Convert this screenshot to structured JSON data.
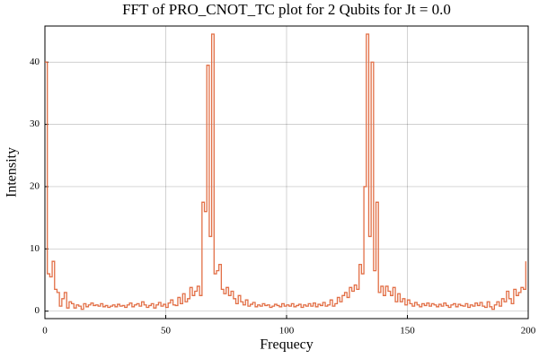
{
  "chart_data": {
    "type": "step",
    "title": "FFT of PRO_CNOT_TC plot for 2 Qubits for Jt = 0.0",
    "x_label": "Frequecy",
    "y_label": "Intensity",
    "x": [
      0,
      1,
      2,
      3,
      4,
      5,
      6,
      7,
      8,
      9,
      10,
      11,
      12,
      13,
      14,
      15,
      16,
      17,
      18,
      19,
      20,
      21,
      22,
      23,
      24,
      25,
      26,
      27,
      28,
      29,
      30,
      31,
      32,
      33,
      34,
      35,
      36,
      37,
      38,
      39,
      40,
      41,
      42,
      43,
      44,
      45,
      46,
      47,
      48,
      49,
      50,
      51,
      52,
      53,
      54,
      55,
      56,
      57,
      58,
      59,
      60,
      61,
      62,
      63,
      64,
      65,
      66,
      67,
      68,
      69,
      70,
      71,
      72,
      73,
      74,
      75,
      76,
      77,
      78,
      79,
      80,
      81,
      82,
      83,
      84,
      85,
      86,
      87,
      88,
      89,
      90,
      91,
      92,
      93,
      94,
      95,
      96,
      97,
      98,
      99,
      100,
      101,
      102,
      103,
      104,
      105,
      106,
      107,
      108,
      109,
      110,
      111,
      112,
      113,
      114,
      115,
      116,
      117,
      118,
      119,
      120,
      121,
      122,
      123,
      124,
      125,
      126,
      127,
      128,
      129,
      130,
      131,
      132,
      133,
      134,
      135,
      136,
      137,
      138,
      139,
      140,
      141,
      142,
      143,
      144,
      145,
      146,
      147,
      148,
      149,
      150,
      151,
      152,
      153,
      154,
      155,
      156,
      157,
      158,
      159,
      160,
      161,
      162,
      163,
      164,
      165,
      166,
      167,
      168,
      169,
      170,
      171,
      172,
      173,
      174,
      175,
      176,
      177,
      178,
      179,
      180,
      181,
      182,
      183,
      184,
      185,
      186,
      187,
      188,
      189,
      190,
      191,
      192,
      193,
      194,
      195,
      196,
      197,
      198,
      199
    ],
    "series": [
      {
        "color": "#e26f46",
        "values": [
          40,
          6,
          5.5,
          8,
          3.5,
          3,
          0.8,
          2,
          3,
          0.5,
          1.5,
          1.2,
          0.5,
          1,
          0.8,
          0.3,
          1.2,
          0.7,
          1,
          1.3,
          0.9,
          1,
          0.8,
          1.2,
          0.7,
          0.9,
          0.6,
          0.8,
          1,
          0.7,
          1.1,
          0.8,
          0.9,
          0.6,
          1,
          1.3,
          0.7,
          1,
          1.2,
          0.8,
          1.5,
          1,
          0.6,
          0.9,
          1.2,
          0.5,
          1,
          1.4,
          0.8,
          1.1,
          0.6,
          1.3,
          1.8,
          1,
          0.9,
          2.2,
          1.2,
          2.8,
          1.5,
          2,
          3.8,
          2.5,
          3.2,
          4,
          2.5,
          17.5,
          16,
          39.5,
          12,
          44.5,
          6,
          6.5,
          7.5,
          3.5,
          2.8,
          3.8,
          2.5,
          3.2,
          2,
          1.2,
          2.5,
          1.5,
          1,
          1.8,
          0.8,
          1.1,
          1.4,
          0.7,
          1,
          0.8,
          1.2,
          0.9,
          1,
          0.6,
          0.8,
          1.1,
          0.9,
          0.7,
          1.2,
          0.8,
          1,
          0.8,
          1.2,
          0.7,
          0.9,
          1.1,
          0.6,
          1,
          0.8,
          1.2,
          0.8,
          1.3,
          0.7,
          1.1,
          0.9,
          1.4,
          0.8,
          1,
          1.8,
          0.8,
          1.2,
          2.2,
          1.5,
          2.5,
          3,
          2.2,
          3.8,
          3.2,
          4.2,
          3.5,
          7.5,
          6,
          20,
          44.5,
          12,
          40,
          6.5,
          17.5,
          3,
          4,
          2.5,
          4,
          3.2,
          2.5,
          3.8,
          1.5,
          2.8,
          1.5,
          2,
          1,
          1.8,
          1.2,
          0.8,
          1.4,
          1,
          0.7,
          1.2,
          0.9,
          1.3,
          0.8,
          1.2,
          1,
          0.7,
          1.1,
          0.8,
          1.3,
          0.9,
          0.6,
          1,
          1.2,
          0.7,
          1.1,
          0.9,
          0.8,
          1.2,
          0.6,
          1,
          0.8,
          1.3,
          0.9,
          1.4,
          0.8,
          0.6,
          1.5,
          0.7,
          0.3,
          1,
          1.5,
          0.8,
          2,
          1.5,
          3.2,
          2,
          1.2,
          3.5,
          2.5,
          3,
          3.8,
          3.5,
          8
        ]
      }
    ],
    "xlim": [
      0,
      200
    ],
    "xticks": [
      0,
      50,
      100,
      150,
      200
    ],
    "ylim": [
      -1.2,
      45.8
    ],
    "yticks": [
      0,
      10,
      20,
      30,
      40
    ],
    "grid": true
  }
}
